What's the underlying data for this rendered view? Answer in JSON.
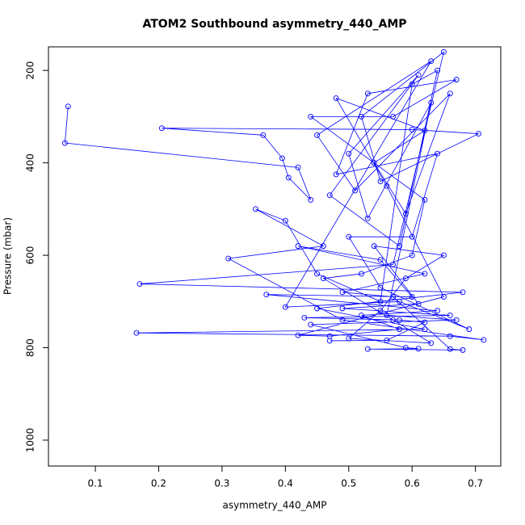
{
  "chart_data": {
    "type": "line",
    "title": "ATOM2 Southbound asymmetry_440_AMP",
    "x_label": "asymmetry_440_AMP",
    "y_label": "Pressure (mbar)",
    "xlim": [
      0.026,
      0.74
    ],
    "ylim": [
      149,
      1056
    ],
    "y_inverted": true,
    "xticks": [
      0.1,
      0.2,
      0.3,
      0.4,
      0.5,
      0.6,
      0.7
    ],
    "yticks": [
      200,
      400,
      600,
      800,
      1000
    ],
    "color": "#0000ff",
    "x": [
      0.057,
      0.052,
      0.42,
      0.44,
      0.405,
      0.395,
      0.365,
      0.205,
      0.6,
      0.705,
      0.55,
      0.52,
      0.65,
      0.57,
      0.17,
      0.68,
      0.45,
      0.62,
      0.165,
      0.66,
      0.713,
      0.49,
      0.31,
      0.46,
      0.353,
      0.4,
      0.45,
      0.55,
      0.6,
      0.64,
      0.58,
      0.47,
      0.61,
      0.5,
      0.53,
      0.63,
      0.56,
      0.67,
      0.44,
      0.59,
      0.61,
      0.53,
      0.68,
      0.66,
      0.57,
      0.49,
      0.62,
      0.42,
      0.55,
      0.6,
      0.37,
      0.64,
      0.52,
      0.58,
      0.47,
      0.42,
      0.65,
      0.56,
      0.48,
      0.62,
      0.54,
      0.59,
      0.66,
      0.51,
      0.45,
      0.63,
      0.4,
      0.58,
      0.69,
      0.55,
      0.5,
      0.6,
      0.64,
      0.48,
      0.53,
      0.67,
      0.57,
      0.44,
      0.62,
      0.6,
      0.52,
      0.46,
      0.57,
      0.63,
      0.5,
      0.55,
      0.59,
      0.65,
      0.54,
      0.61,
      0.49,
      0.66,
      0.43,
      0.58,
      0.62,
      0.56,
      0.47
    ],
    "values": [
      278,
      357,
      410,
      480,
      432,
      390,
      340,
      325,
      328,
      337,
      440,
      300,
      160,
      620,
      662,
      680,
      715,
      760,
      768,
      775,
      783,
      740,
      607,
      580,
      500,
      525,
      640,
      700,
      230,
      200,
      580,
      470,
      210,
      380,
      520,
      270,
      730,
      740,
      750,
      800,
      802,
      803,
      805,
      803,
      690,
      680,
      640,
      580,
      610,
      690,
      685,
      720,
      730,
      760,
      775,
      773,
      690,
      450,
      260,
      330,
      400,
      510,
      250,
      460,
      340,
      180,
      712,
      700,
      760,
      670,
      560,
      560,
      380,
      425,
      250,
      220,
      300,
      300,
      480,
      600,
      640,
      650,
      740,
      790,
      780,
      720,
      650,
      600,
      580,
      705,
      715,
      730,
      735,
      740,
      745,
      784,
      785
    ]
  }
}
